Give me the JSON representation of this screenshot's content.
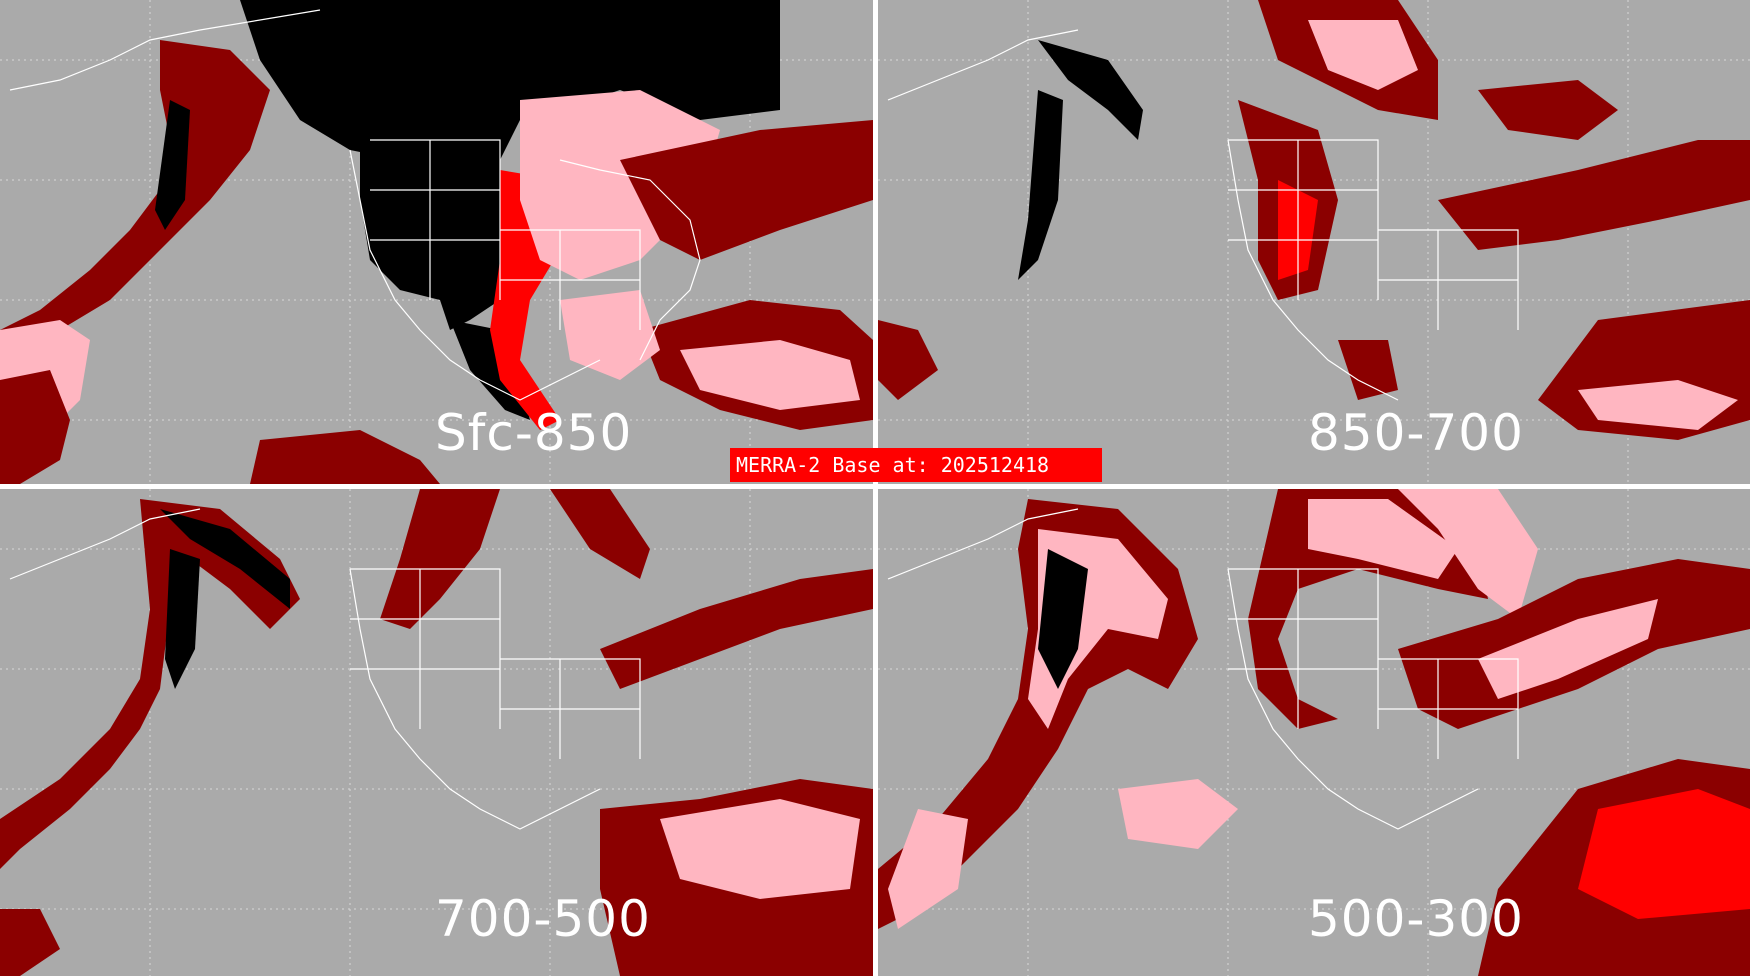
{
  "source_banner": "MERRA-2 Base at: 202512418",
  "panels": [
    {
      "id": "tl",
      "label": "Sfc-850"
    },
    {
      "id": "tr",
      "label": "850-700"
    },
    {
      "id": "bl",
      "label": "700-500"
    },
    {
      "id": "br",
      "label": "500-300"
    }
  ],
  "colors": {
    "background": "#aaaaaa",
    "divider": "#ffffff",
    "dark_red": "#8b0000",
    "pink": "#ffb6c1",
    "red": "#ff0000",
    "black": "#000000",
    "coastline": "#ffffff"
  }
}
